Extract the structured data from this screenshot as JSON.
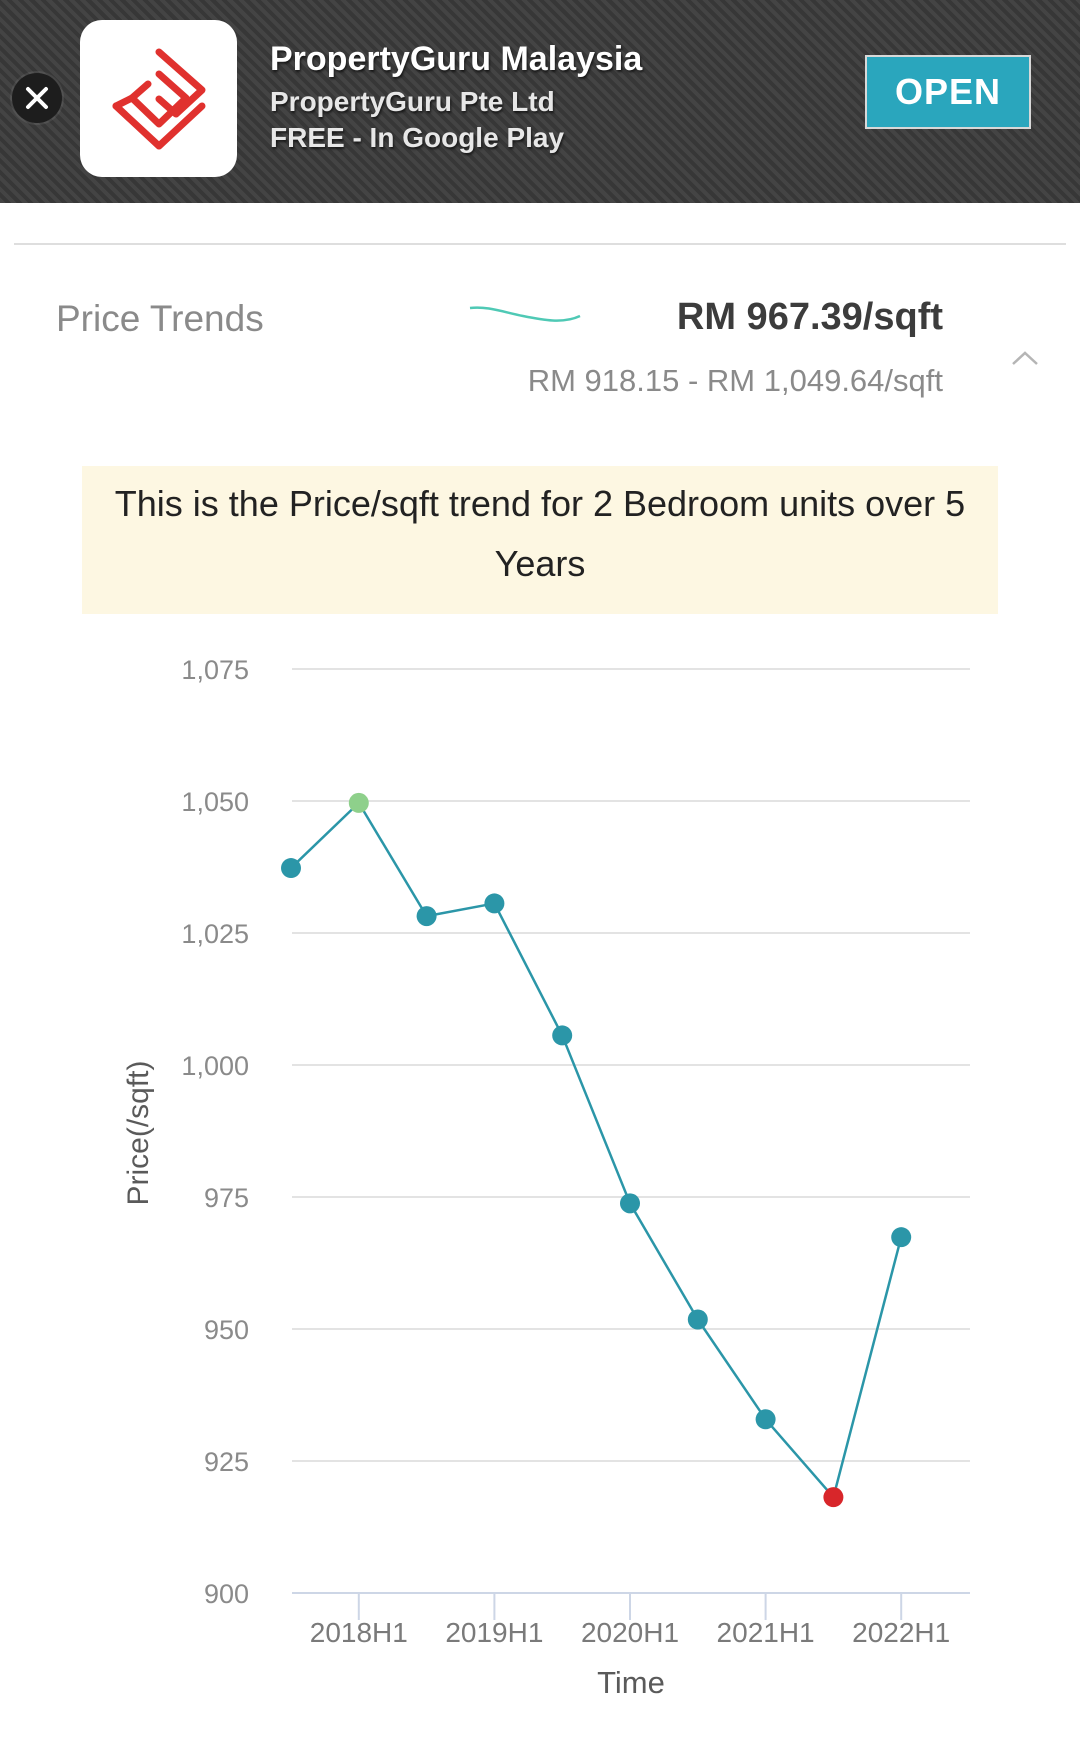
{
  "banner": {
    "app_name": "PropertyGuru Malaysia",
    "publisher": "PropertyGuru Pte Ltd",
    "store_info": "FREE - In Google Play",
    "open_label": "OPEN",
    "close_icon": "close-icon",
    "app_icon": "propertyguru-logo-icon"
  },
  "price_trends": {
    "label": "Price Trends",
    "current_value": "RM 967.39/sqft",
    "range": "RM 918.15 - RM 1,049.64/sqft",
    "collapse_icon": "chevron-up-icon",
    "sparkline_color": "#4fc9b5"
  },
  "info": {
    "message": "This is the Price/sqft trend for 2 Bedroom units over 5 Years"
  },
  "chart_data": {
    "type": "line",
    "title": "",
    "xlabel": "Time",
    "ylabel": "Price(/sqft)",
    "ylim": [
      900,
      1075
    ],
    "y_ticks": [
      "900",
      "925",
      "950",
      "975",
      "1,000",
      "1,025",
      "1,050",
      "1,075"
    ],
    "x_tick_labels": [
      "2018H1",
      "2019H1",
      "2020H1",
      "2021H1",
      "2022H1"
    ],
    "x": [
      "2017H2",
      "2018H1",
      "2018H2",
      "2019H1",
      "2019H2",
      "2020H1",
      "2020H2",
      "2021H1",
      "2021H2",
      "2022H1"
    ],
    "series": [
      {
        "values": [
          1037.3,
          1049.64,
          1028.2,
          1030.6,
          1005.6,
          973.8,
          951.8,
          932.9,
          918.15,
          967.39
        ]
      }
    ],
    "highlight": {
      "max_index": 1,
      "min_index": 8
    },
    "colors": {
      "line": "#2b96a8",
      "point": "#2b96a8",
      "max": "#8ed08b",
      "min": "#d8262a",
      "grid": "#e3e3e3"
    },
    "grid": true,
    "legend": "none"
  }
}
